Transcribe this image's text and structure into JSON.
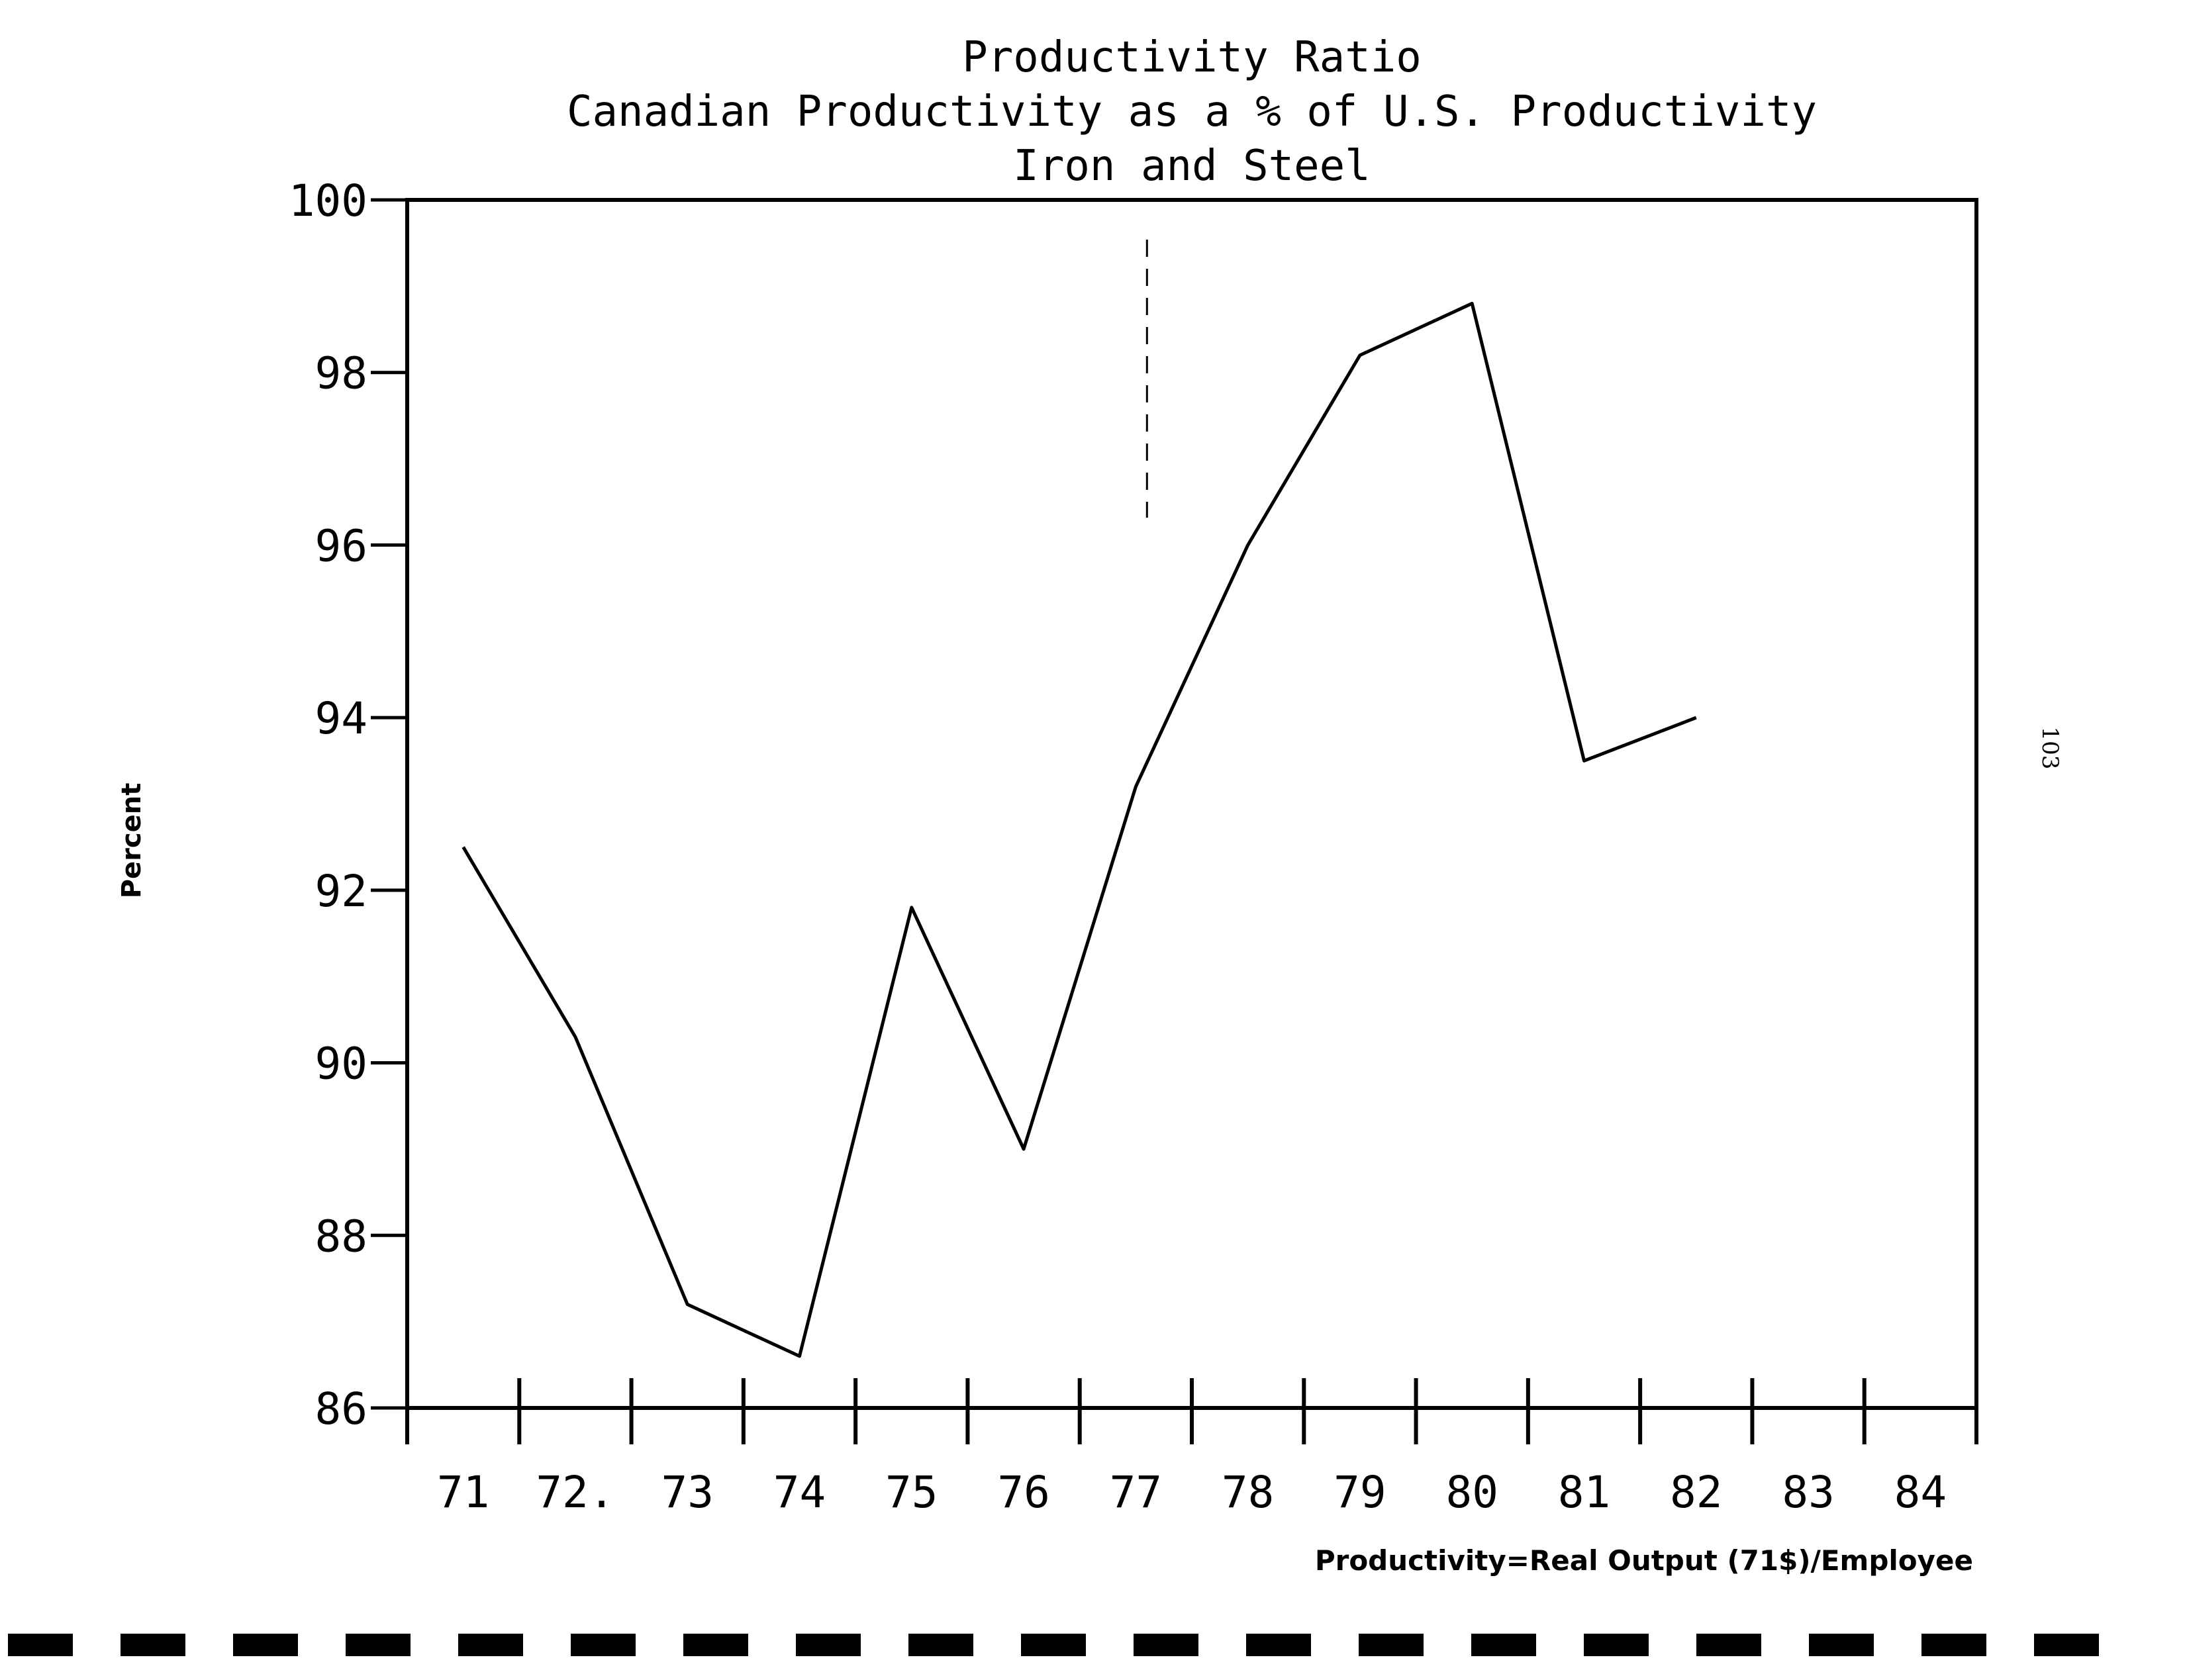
{
  "chart_data": {
    "type": "line",
    "title": "Productivity Ratio",
    "subtitle": "Canadian Productivity as a % of U.S. Productivity",
    "subtitle2": "Iron and Steel",
    "ylabel": "Percent",
    "x_note": "Productivity=Real Output (71$)/Employee",
    "categories": [
      "71",
      "72.",
      "73",
      "74",
      "75",
      "76",
      "77",
      "78",
      "79",
      "80",
      "81",
      "82",
      "83",
      "84"
    ],
    "x": [
      71,
      72,
      73,
      74,
      75,
      76,
      77,
      78,
      79,
      80,
      81,
      82
    ],
    "values": [
      92.5,
      90.3,
      87.2,
      86.6,
      91.8,
      89.0,
      93.2,
      96.0,
      98.2,
      98.8,
      93.5,
      94.0
    ],
    "xlim": [
      70.5,
      84.5
    ],
    "ylim": [
      86,
      100
    ],
    "yticks": [
      "86",
      "88",
      "90",
      "92",
      "94",
      "96",
      "98",
      "100"
    ],
    "grid": false,
    "legend": "none",
    "marker_line_x": 77.1,
    "line_color": "#000000"
  },
  "page_number": "103"
}
